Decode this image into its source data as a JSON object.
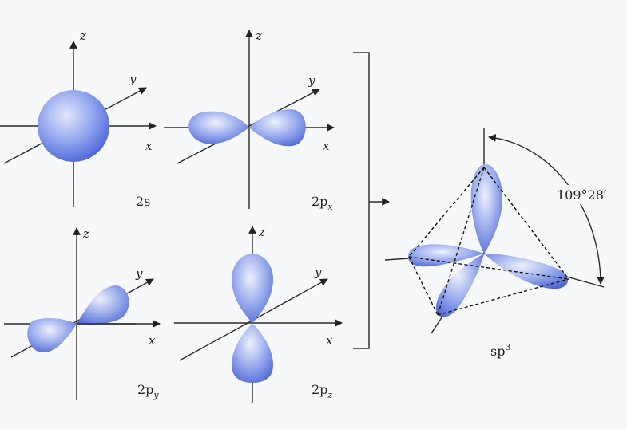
{
  "axis_labels": {
    "x": "x",
    "y": "y",
    "z": "z"
  },
  "orbitals": [
    {
      "name": "2s",
      "main": "2s",
      "sub": ""
    },
    {
      "name": "2px",
      "main": "2p",
      "sub": "x"
    },
    {
      "name": "2py",
      "main": "2p",
      "sub": "y"
    },
    {
      "name": "2pz",
      "main": "2p",
      "sub": "z"
    }
  ],
  "hybrid": {
    "name": "sp3",
    "main": "sp",
    "sup": "3",
    "angle": "109°28′"
  },
  "colors": {
    "lobe_light": "#e2e8fb",
    "lobe_mid": "#8fa3ee",
    "lobe_dark": "#4a62d6",
    "line": "#222222"
  }
}
